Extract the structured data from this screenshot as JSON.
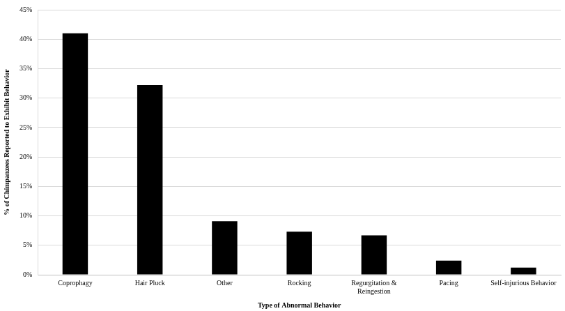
{
  "chart_data": {
    "type": "bar",
    "categories": [
      "Coprophagy",
      "Hair Pluck",
      "Other",
      "Rocking",
      "Regurgitation & Reingestion",
      "Pacing",
      "Self-injurious Behavior"
    ],
    "values": [
      41.0,
      32.2,
      9.1,
      7.3,
      6.7,
      2.4,
      1.2
    ],
    "color": "#000000",
    "x_label": "Type of Abnormal Behavior",
    "y_label": "% of Chimpanzees Reported to Exhibit Behavior",
    "ylim": [
      0,
      45
    ],
    "yticks": [
      {
        "value": 0,
        "label": "0%"
      },
      {
        "value": 5,
        "label": "5%"
      },
      {
        "value": 10,
        "label": "10%"
      },
      {
        "value": 15,
        "label": "15%"
      },
      {
        "value": 20,
        "label": "20%"
      },
      {
        "value": 25,
        "label": "25%"
      },
      {
        "value": 30,
        "label": "30%"
      },
      {
        "value": 35,
        "label": "35%"
      },
      {
        "value": 40,
        "label": "40%"
      },
      {
        "value": 45,
        "label": "45%"
      }
    ],
    "grid": true
  }
}
